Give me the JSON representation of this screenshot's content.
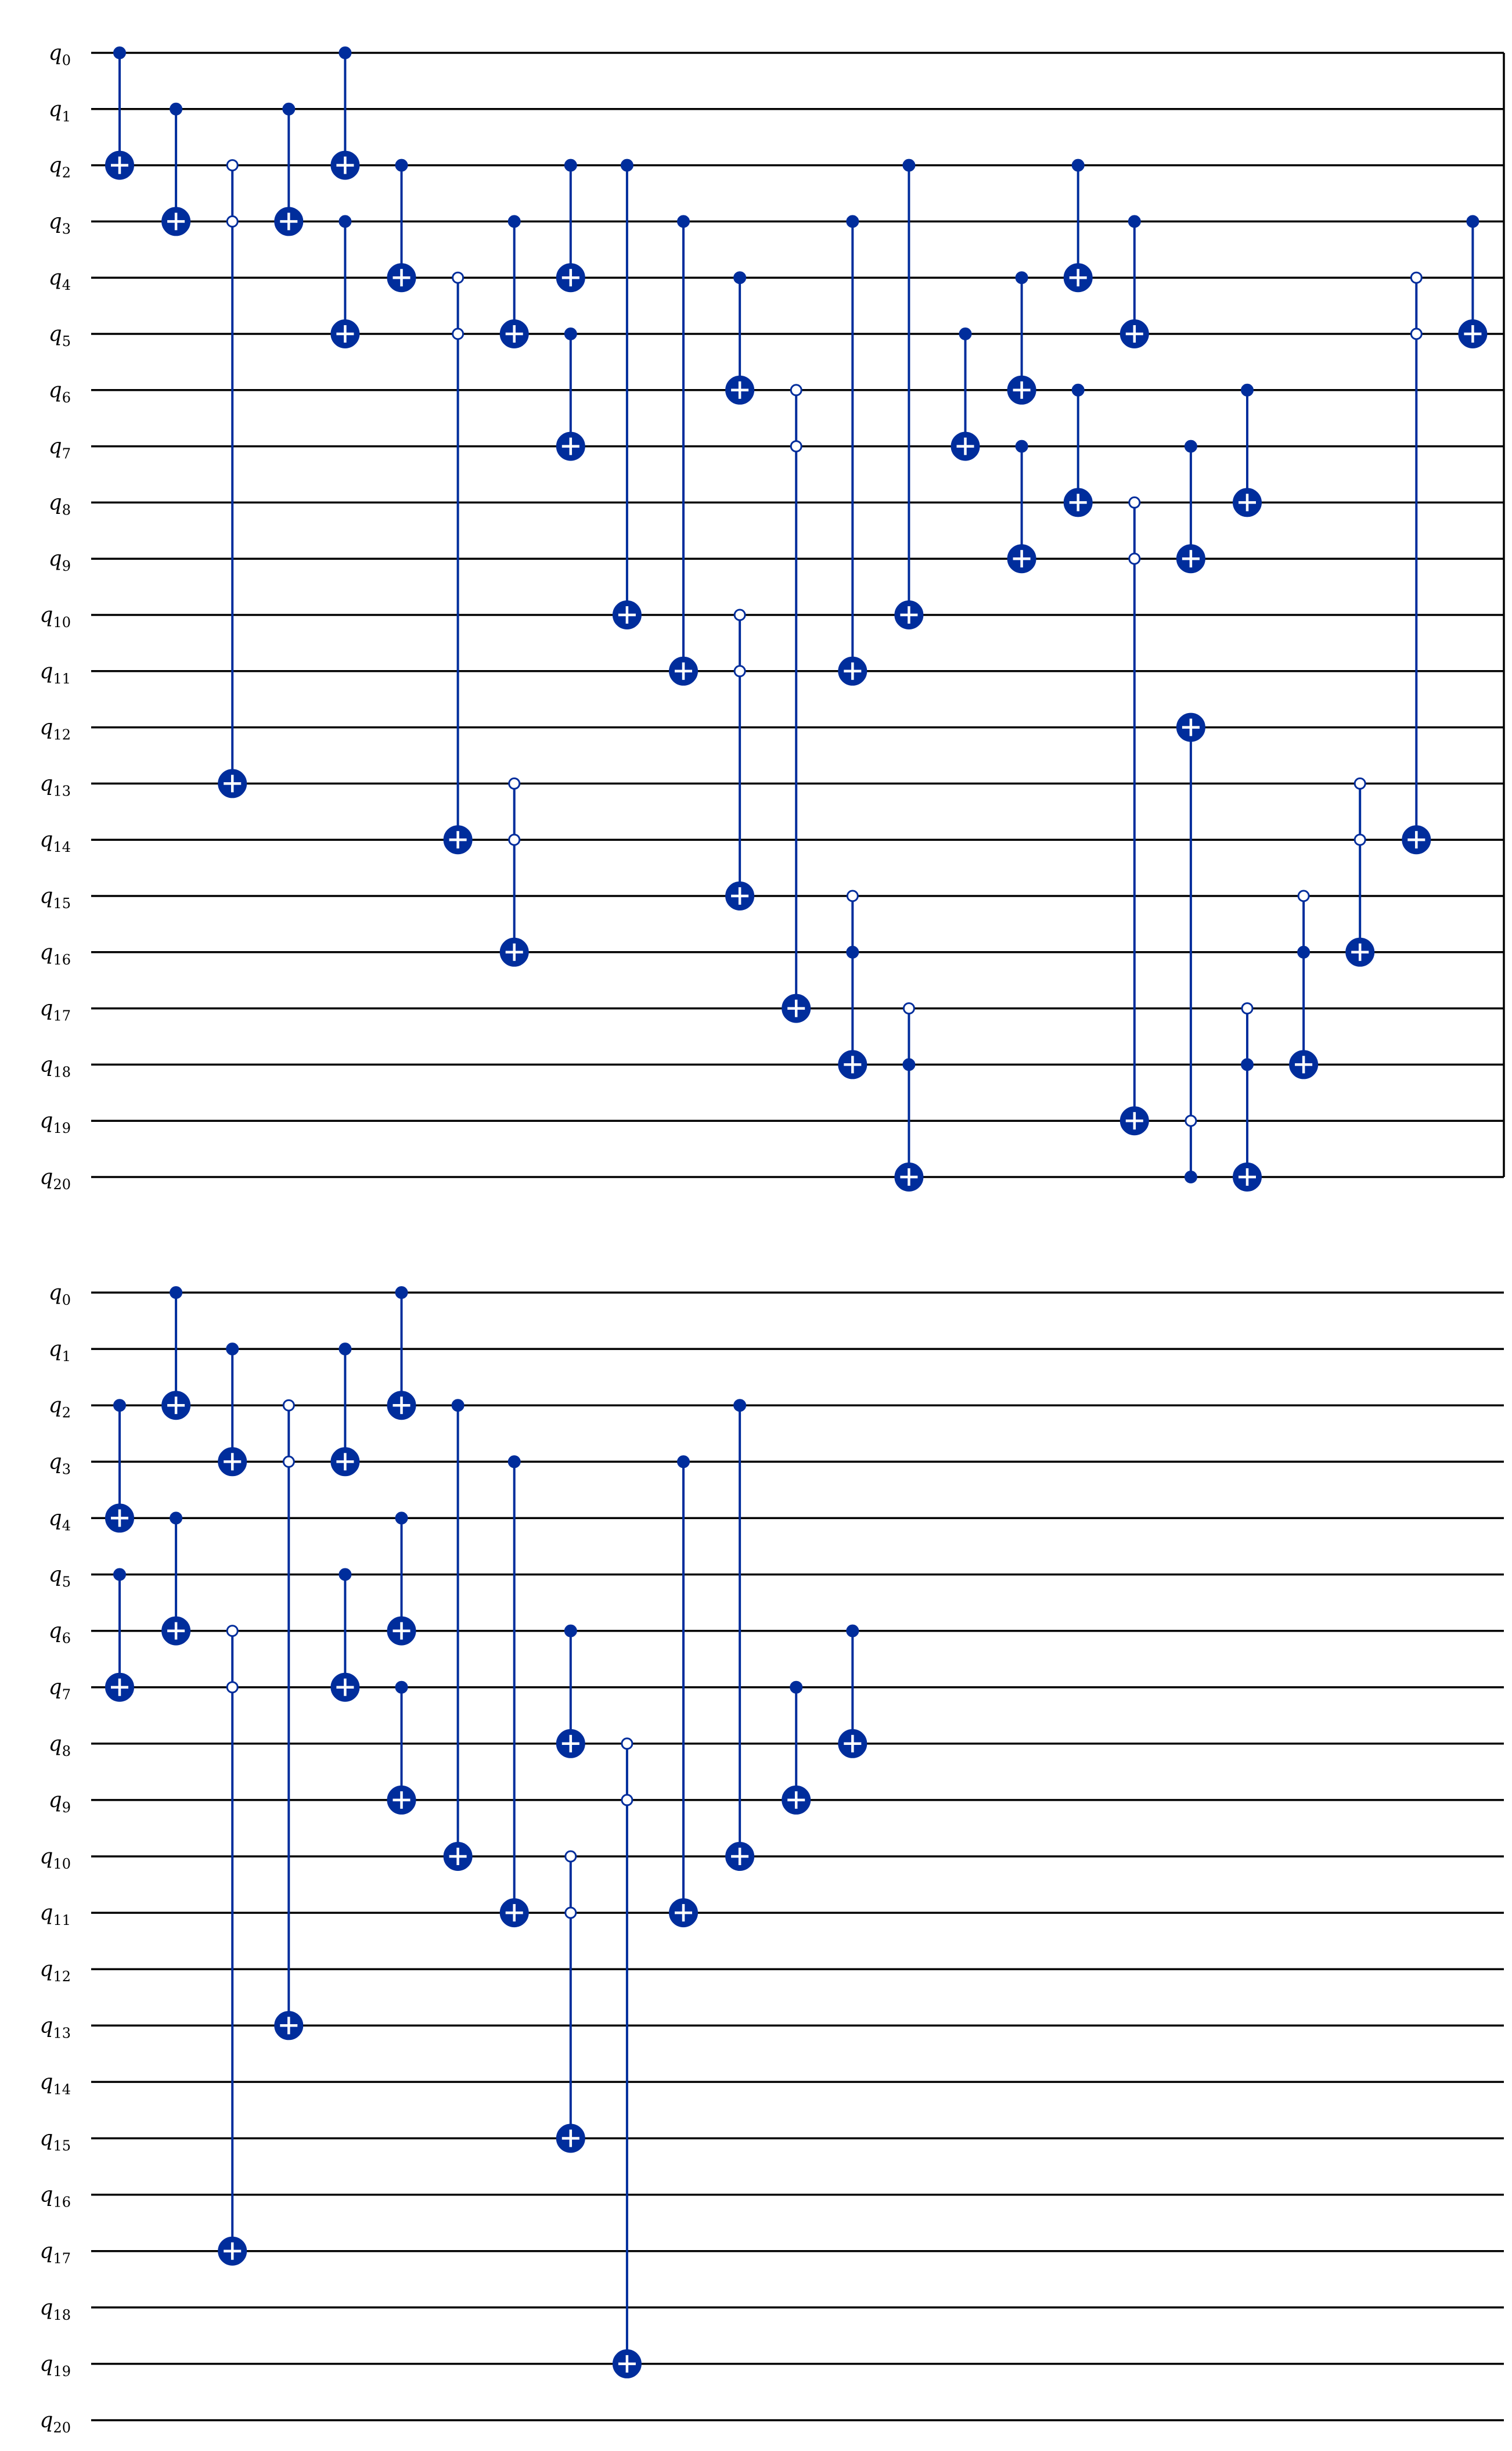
{
  "colors": {
    "gate": "#002d9c",
    "wire": "#000000",
    "background": "#ffffff"
  },
  "qubit_labels": [
    "q_0",
    "q_1",
    "q_2",
    "q_3",
    "q_4",
    "q_5",
    "q_6",
    "q_7",
    "q_8",
    "q_9",
    "q_10",
    "q_11",
    "q_12",
    "q_13",
    "q_14",
    "q_15",
    "q_16",
    "q_17",
    "q_18",
    "q_19",
    "q_20"
  ],
  "panels": [
    {
      "gates": [
        {
          "col": 0,
          "controls": [
            [
              0,
              1
            ]
          ],
          "target": 2
        },
        {
          "col": 1,
          "controls": [
            [
              1,
              1
            ]
          ],
          "target": 3
        },
        {
          "col": 2,
          "controls": [
            [
              2,
              0
            ],
            [
              3,
              0
            ]
          ],
          "target": 13
        },
        {
          "col": 3,
          "controls": [
            [
              1,
              1
            ]
          ],
          "target": 3
        },
        {
          "col": 4,
          "controls": [
            [
              0,
              1
            ]
          ],
          "target": 2
        },
        {
          "col": 4,
          "controls": [
            [
              3,
              1
            ]
          ],
          "target": 5
        },
        {
          "col": 5,
          "controls": [
            [
              2,
              1
            ]
          ],
          "target": 4
        },
        {
          "col": 6,
          "controls": [
            [
              4,
              0
            ],
            [
              5,
              0
            ]
          ],
          "target": 14
        },
        {
          "col": 7,
          "controls": [
            [
              3,
              1
            ]
          ],
          "target": 5
        },
        {
          "col": 7,
          "controls": [
            [
              13,
              0
            ],
            [
              14,
              0
            ]
          ],
          "target": 16
        },
        {
          "col": 8,
          "controls": [
            [
              2,
              1
            ]
          ],
          "target": 4
        },
        {
          "col": 8,
          "controls": [
            [
              5,
              1
            ]
          ],
          "target": 7
        },
        {
          "col": 9,
          "controls": [
            [
              2,
              1
            ]
          ],
          "target": 10
        },
        {
          "col": 10,
          "controls": [
            [
              3,
              1
            ]
          ],
          "target": 11
        },
        {
          "col": 11,
          "controls": [
            [
              4,
              1
            ]
          ],
          "target": 6
        },
        {
          "col": 11,
          "controls": [
            [
              10,
              0
            ],
            [
              11,
              0
            ]
          ],
          "target": 15
        },
        {
          "col": 12,
          "controls": [
            [
              6,
              0
            ],
            [
              7,
              0
            ]
          ],
          "target": 17
        },
        {
          "col": 13,
          "controls": [
            [
              3,
              1
            ]
          ],
          "target": 11
        },
        {
          "col": 13,
          "controls": [
            [
              15,
              0
            ],
            [
              16,
              1
            ]
          ],
          "target": 18
        },
        {
          "col": 14,
          "controls": [
            [
              2,
              1
            ]
          ],
          "target": 10
        },
        {
          "col": 14,
          "controls": [
            [
              17,
              0
            ],
            [
              18,
              1
            ]
          ],
          "target": 20
        },
        {
          "col": 15,
          "controls": [
            [
              5,
              1
            ]
          ],
          "target": 7
        },
        {
          "col": 16,
          "controls": [
            [
              4,
              1
            ]
          ],
          "target": 6
        },
        {
          "col": 16,
          "controls": [
            [
              7,
              1
            ]
          ],
          "target": 9
        },
        {
          "col": 17,
          "controls": [
            [
              2,
              1
            ]
          ],
          "target": 4
        },
        {
          "col": 17,
          "controls": [
            [
              6,
              1
            ]
          ],
          "target": 8
        },
        {
          "col": 18,
          "controls": [
            [
              3,
              1
            ]
          ],
          "target": 5
        },
        {
          "col": 18,
          "controls": [
            [
              8,
              0
            ],
            [
              9,
              0
            ]
          ],
          "target": 19
        },
        {
          "col": 19,
          "controls": [
            [
              7,
              1
            ]
          ],
          "target": 9
        },
        {
          "col": 19,
          "controls": [
            [
              19,
              0
            ],
            [
              20,
              1
            ]
          ],
          "target": 12
        },
        {
          "col": 20,
          "controls": [
            [
              6,
              1
            ]
          ],
          "target": 8
        },
        {
          "col": 20,
          "controls": [
            [
              17,
              0
            ],
            [
              18,
              1
            ]
          ],
          "target": 20
        },
        {
          "col": 21,
          "controls": [
            [
              15,
              0
            ],
            [
              16,
              1
            ]
          ],
          "target": 18
        },
        {
          "col": 22,
          "controls": [
            [
              13,
              0
            ],
            [
              14,
              0
            ]
          ],
          "target": 16
        },
        {
          "col": 23,
          "controls": [
            [
              4,
              0
            ],
            [
              5,
              0
            ]
          ],
          "target": 14
        },
        {
          "col": 24,
          "controls": [
            [
              3,
              1
            ]
          ],
          "target": 5
        }
      ]
    },
    {
      "gates": [
        {
          "col": 0,
          "controls": [
            [
              2,
              1
            ]
          ],
          "target": 4
        },
        {
          "col": 0,
          "controls": [
            [
              5,
              1
            ]
          ],
          "target": 7
        },
        {
          "col": 1,
          "controls": [
            [
              0,
              1
            ]
          ],
          "target": 2
        },
        {
          "col": 1,
          "controls": [
            [
              4,
              1
            ]
          ],
          "target": 6
        },
        {
          "col": 2,
          "controls": [
            [
              1,
              1
            ]
          ],
          "target": 3
        },
        {
          "col": 2,
          "controls": [
            [
              6,
              0
            ],
            [
              7,
              0
            ]
          ],
          "target": 17
        },
        {
          "col": 3,
          "controls": [
            [
              2,
              0
            ],
            [
              3,
              0
            ]
          ],
          "target": 13
        },
        {
          "col": 4,
          "controls": [
            [
              1,
              1
            ]
          ],
          "target": 3
        },
        {
          "col": 4,
          "controls": [
            [
              5,
              1
            ]
          ],
          "target": 7
        },
        {
          "col": 5,
          "controls": [
            [
              0,
              1
            ]
          ],
          "target": 2
        },
        {
          "col": 5,
          "controls": [
            [
              4,
              1
            ]
          ],
          "target": 6
        },
        {
          "col": 5,
          "controls": [
            [
              7,
              1
            ]
          ],
          "target": 9
        },
        {
          "col": 6,
          "controls": [
            [
              2,
              1
            ]
          ],
          "target": 10
        },
        {
          "col": 7,
          "controls": [
            [
              3,
              1
            ]
          ],
          "target": 11
        },
        {
          "col": 8,
          "controls": [
            [
              6,
              1
            ]
          ],
          "target": 8
        },
        {
          "col": 8,
          "controls": [
            [
              10,
              0
            ],
            [
              11,
              0
            ]
          ],
          "target": 15
        },
        {
          "col": 9,
          "controls": [
            [
              8,
              0
            ],
            [
              9,
              0
            ]
          ],
          "target": 19
        },
        {
          "col": 10,
          "controls": [
            [
              3,
              1
            ]
          ],
          "target": 11
        },
        {
          "col": 11,
          "controls": [
            [
              2,
              1
            ]
          ],
          "target": 10
        },
        {
          "col": 12,
          "controls": [
            [
              7,
              1
            ]
          ],
          "target": 9
        },
        {
          "col": 13,
          "controls": [
            [
              6,
              1
            ]
          ],
          "target": 8
        }
      ]
    }
  ]
}
